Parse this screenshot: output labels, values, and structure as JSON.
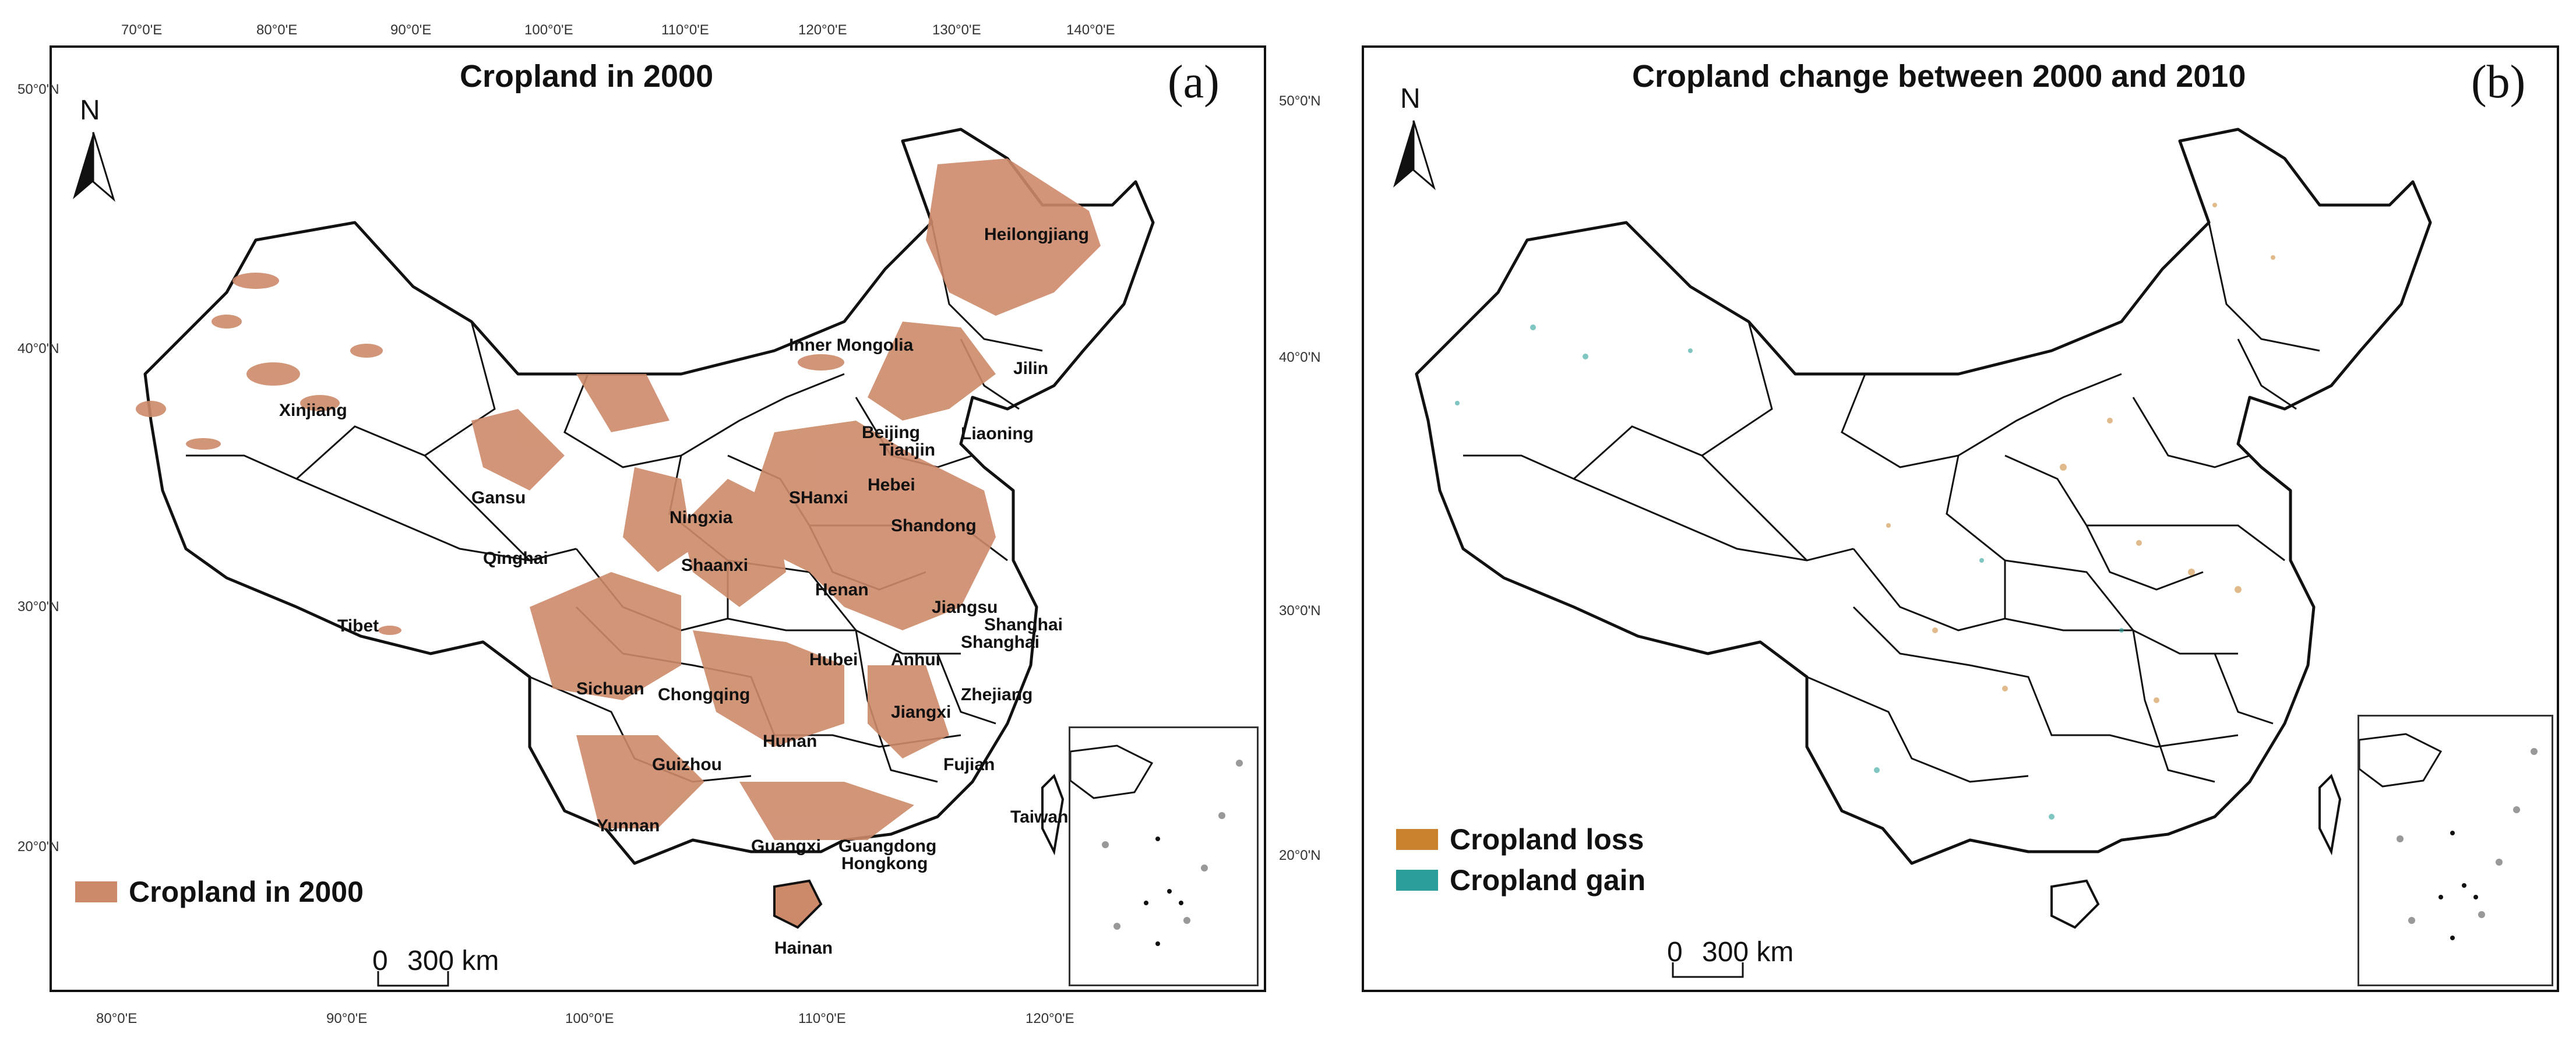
{
  "panel_a": {
    "title": "Cropland in 2000",
    "tag": "(a)",
    "legend": [
      {
        "label": "Cropland in 2000",
        "color": "#cd8a6a"
      }
    ],
    "scale_bar": {
      "zero": "0",
      "distance": "300 km"
    },
    "north": "N"
  },
  "panel_b": {
    "title": "Cropland change between 2000 and 2010",
    "tag": "(b)",
    "legend": [
      {
        "label": "Cropland loss",
        "color": "#c9822e"
      },
      {
        "label": "Cropland gain",
        "color": "#2a9e98"
      }
    ],
    "scale_bar": {
      "zero": "0",
      "distance": "300 km"
    },
    "north": "N"
  },
  "axis_labels": {
    "top_lon": [
      "70°0'E",
      "80°0'E",
      "90°0'E",
      "100°0'E",
      "110°0'E",
      "120°0'E",
      "130°0'E",
      "140°0'E"
    ],
    "bottom_lon": [
      "80°0'E",
      "90°0'E",
      "100°0'E",
      "110°0'E",
      "120°0'E"
    ],
    "left_lat": [
      "50°0'N",
      "40°0'N",
      "30°0'N",
      "20°0'N"
    ],
    "right_lat": [
      "50°0'N",
      "40°0'N",
      "30°0'N",
      "20°0'N"
    ]
  },
  "provinces": [
    "Heilongjiang",
    "Jilin",
    "Liaoning",
    "Inner Mongolia",
    "Xinjiang",
    "Gansu",
    "Qinghai",
    "Tibet",
    "Ningxia",
    "SHanxi",
    "Shaanxi",
    "Beijing",
    "Tianjin",
    "Hebei",
    "Shandong",
    "Henan",
    "Jiangsu",
    "Shanghai",
    "Anhui",
    "Hubei",
    "Sichuan",
    "Chongqing",
    "Zhejiang",
    "Jiangxi",
    "Hunan",
    "Guizhou",
    "Fujian",
    "Yunnan",
    "Guangxi",
    "Guangdong",
    "Hongkong",
    "Taiwan",
    "Hainan"
  ]
}
